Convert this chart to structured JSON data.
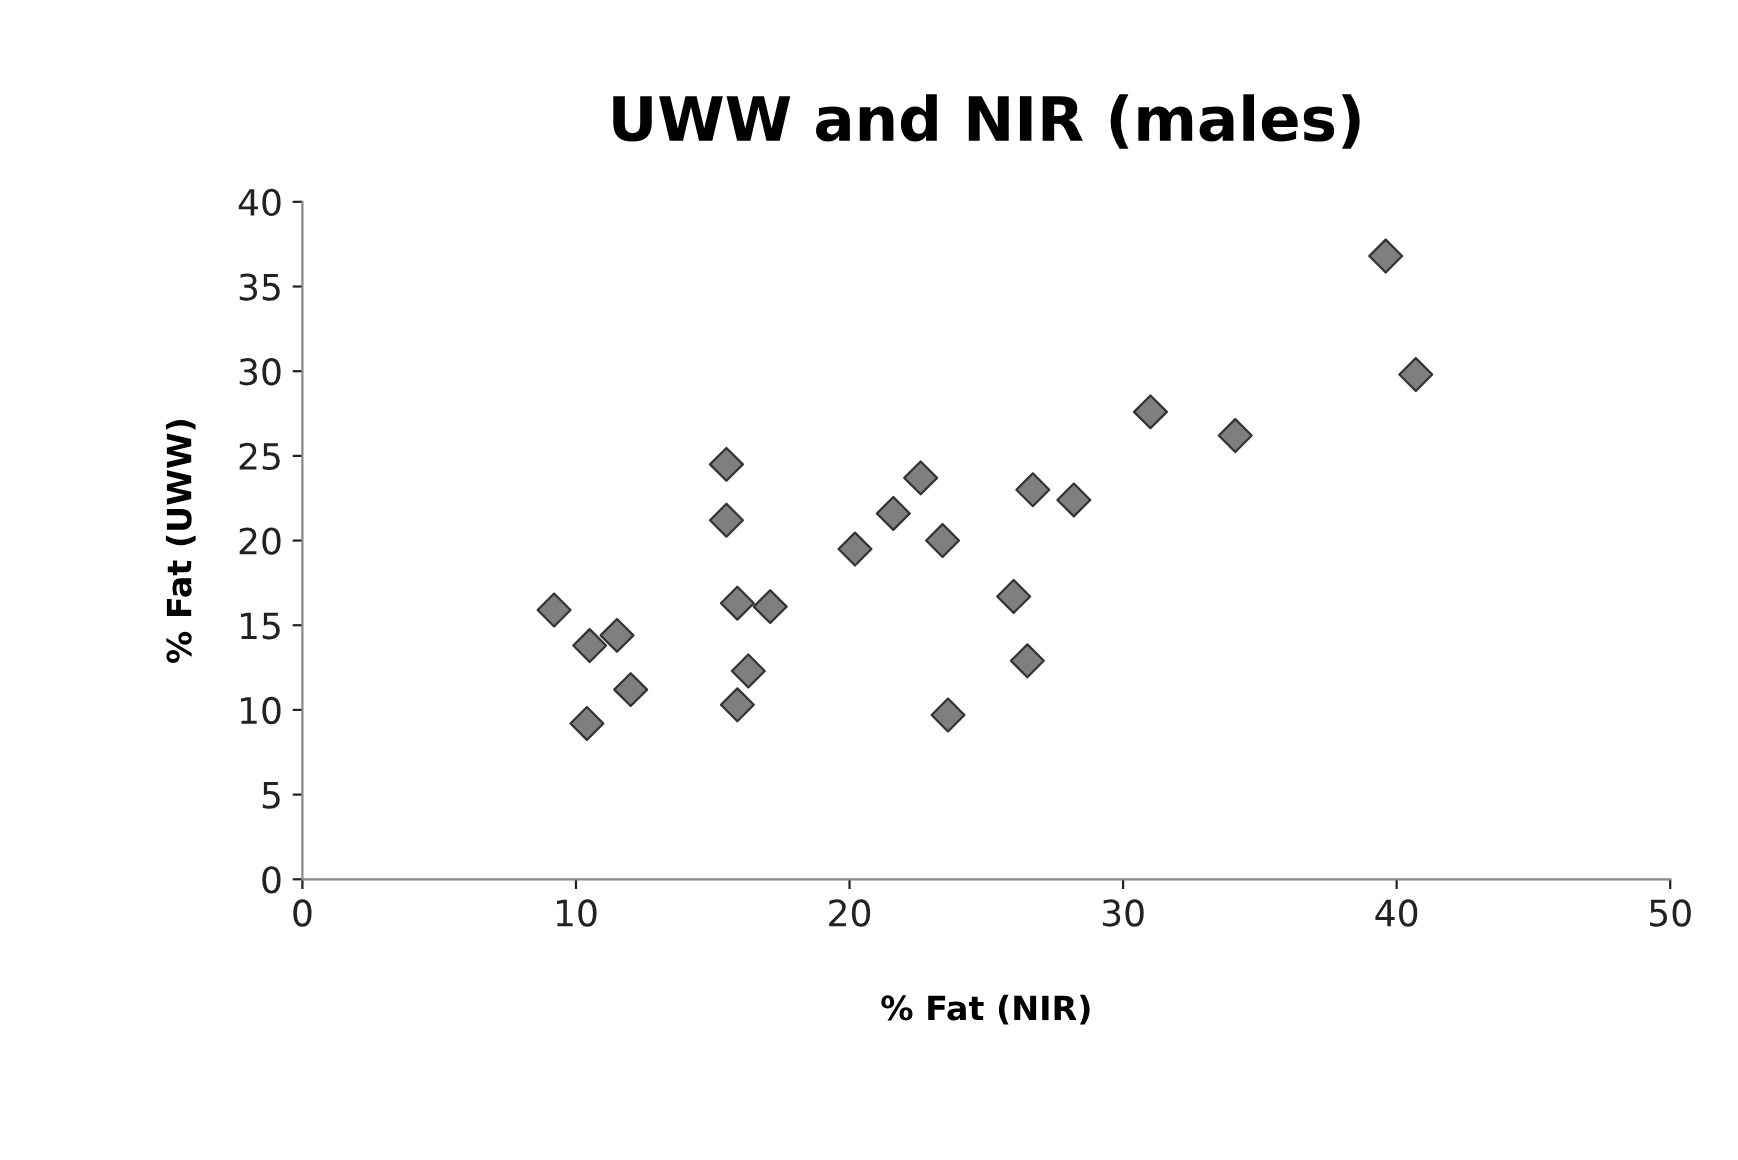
{
  "chart_data": {
    "type": "scatter",
    "title": "UWW and NIR (males)",
    "xlabel": "% Fat (NIR)",
    "ylabel": "% Fat (UWW)",
    "x": [
      9.2,
      10.5,
      11.5,
      10.4,
      12.0,
      15.5,
      15.5,
      15.9,
      17.1,
      16.3,
      15.9,
      20.2,
      21.6,
      22.6,
      23.4,
      23.6,
      39.6,
      40.7,
      31.0,
      34.1,
      26.7,
      28.2,
      26.0,
      26.5
    ],
    "values": [
      15.9,
      13.8,
      14.4,
      9.2,
      11.2,
      24.5,
      21.2,
      16.3,
      16.1,
      12.3,
      10.3,
      19.5,
      21.6,
      23.7,
      20.0,
      9.7,
      36.8,
      29.8,
      27.6,
      26.2,
      23.0,
      22.4,
      16.7,
      12.9
    ],
    "color": "#7f7f7f",
    "marker": "diamond",
    "xlim": [
      0,
      50
    ],
    "xticks": [
      0,
      10,
      20,
      30,
      40,
      50
    ],
    "ylim": [
      0,
      40
    ],
    "yticks": [
      0,
      5,
      10,
      15,
      20,
      25,
      30,
      35,
      40
    ],
    "grid": false,
    "legend": false
  }
}
